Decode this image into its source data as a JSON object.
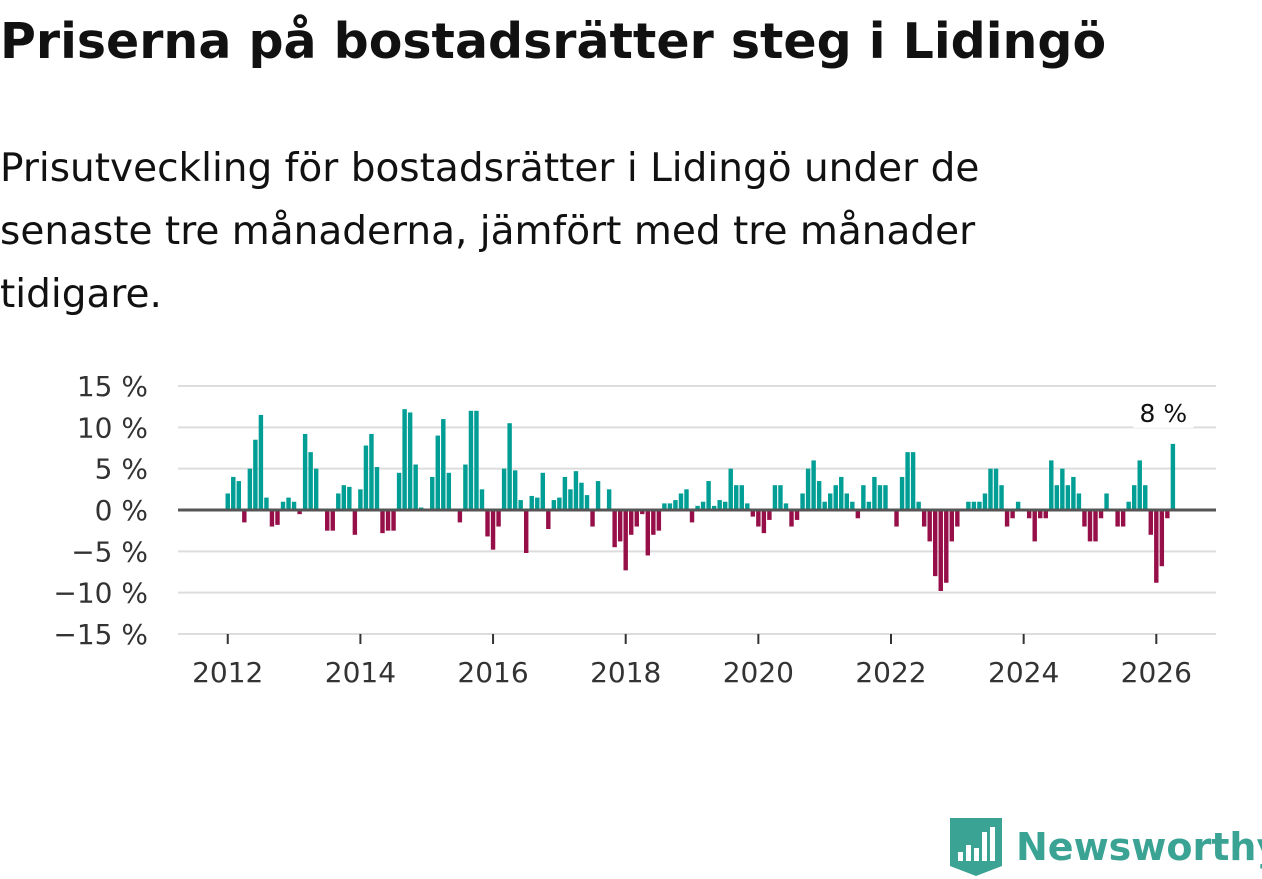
{
  "title": "Priserna på bostadsrätter steg i Lidingö",
  "subtitle": "Prisutveckling för bostadsrätter i Lidingö under de senaste tre månaderna, jämfört med tre månader tidigare.",
  "brand": {
    "name": "Newsworthy",
    "color": "#3aa394"
  },
  "colors": {
    "positive": "#009e95",
    "negative": "#970f48",
    "grid": "#dddddd",
    "zero_line": "#555555"
  },
  "chart_data": {
    "type": "bar",
    "title": "",
    "xlabel": "",
    "ylabel": "",
    "unit": "%",
    "x_unit": "year",
    "start_month": "2011-12",
    "ylim": [
      -15,
      15
    ],
    "yticks": [
      15,
      10,
      5,
      0,
      -5,
      -10,
      -15
    ],
    "ytick_labels": [
      "15 %",
      "10 %",
      "5 %",
      "0 %",
      "−5 %",
      "−10 %",
      "−15 %"
    ],
    "xlim": [
      2011.25,
      2026.9
    ],
    "xticks": [
      2012,
      2014,
      2016,
      2018,
      2020,
      2022,
      2024,
      2026
    ],
    "xtick_labels": [
      "2012",
      "2014",
      "2016",
      "2018",
      "2020",
      "2022",
      "2024",
      "2026"
    ],
    "annotation": {
      "text": "8 %",
      "month": "2026-03",
      "value": 8
    },
    "values": [
      0,
      2,
      4,
      3.5,
      -1.5,
      5,
      8.5,
      11.5,
      1.5,
      -2,
      -1.8,
      1,
      1.5,
      1,
      -0.5,
      9.2,
      7,
      5,
      0,
      -2.5,
      -2.5,
      2,
      3,
      2.8,
      -3,
      2.5,
      7.8,
      9.2,
      5.2,
      -2.8,
      -2.5,
      -2.5,
      4.5,
      12.2,
      11.8,
      5.5,
      0.3,
      0,
      4,
      9,
      11,
      4.5,
      0,
      -1.5,
      5.5,
      12,
      12,
      2.5,
      -3.2,
      -4.8,
      -2,
      5,
      10.5,
      4.8,
      1.2,
      -5.2,
      1.7,
      1.5,
      4.5,
      -2.3,
      1.2,
      1.5,
      4,
      2.5,
      4.7,
      3.3,
      1.8,
      -2,
      3.5,
      0,
      2.5,
      -4.5,
      -3.8,
      -7.3,
      -3,
      -2,
      -0.5,
      -5.5,
      -3,
      -2.5,
      0.8,
      0.8,
      1.2,
      2,
      2.5,
      -1.5,
      0.5,
      1,
      3.5,
      0.5,
      1.2,
      1,
      5,
      3,
      3,
      0.8,
      -0.8,
      -2,
      -2.8,
      -1.2,
      3,
      3,
      0.8,
      -2,
      -1.2,
      2,
      5,
      6,
      3.5,
      1,
      2,
      3,
      4,
      2,
      1,
      -1,
      3,
      1,
      4,
      3,
      3,
      0,
      -2,
      4,
      7,
      7,
      1,
      -2,
      -3.8,
      -8,
      -9.8,
      -8.8,
      -3.8,
      -2,
      0,
      1,
      1,
      1,
      2,
      5,
      5,
      3,
      -2,
      -1,
      1,
      0,
      -1,
      -3.8,
      -1,
      -1,
      6,
      3,
      5,
      3,
      4,
      2,
      -2,
      -3.8,
      -3.8,
      -1,
      2,
      0,
      -2,
      -2,
      1,
      3,
      6,
      3,
      -3,
      -8.8,
      -6.8,
      -1,
      8
    ]
  }
}
